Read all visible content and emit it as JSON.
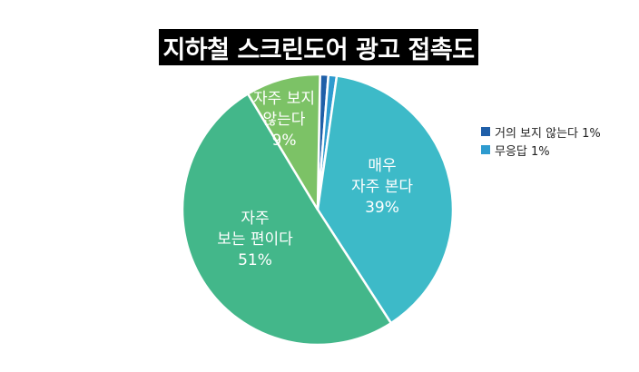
{
  "chart_data": {
    "type": "pie",
    "title": "지하철 스크린도어 광고 접촉도",
    "slices": [
      {
        "label": "거의 보지 않는다",
        "value": 1,
        "color": "#1f5fa8",
        "inner_lines": [],
        "in_legend": true
      },
      {
        "label": "무응답",
        "value": 1,
        "color": "#2e9bcf",
        "inner_lines": [],
        "in_legend": true
      },
      {
        "label": "매우 자주 본다",
        "value": 39,
        "color": "#3dbac8",
        "inner_lines": [
          "매우",
          "자주 본다",
          "39%"
        ],
        "in_legend": false
      },
      {
        "label": "자주 보는 편이다",
        "value": 51,
        "color": "#43b78a",
        "inner_lines": [
          "자주",
          "보는 편이다",
          "51%"
        ],
        "in_legend": false
      },
      {
        "label": "자주 보지 않는다",
        "value": 9,
        "color": "#7cc266",
        "inner_lines": [
          "자주 보지",
          "않는다",
          "9%"
        ],
        "in_legend": false
      }
    ],
    "legend": {
      "placement": "right",
      "items": [
        {
          "text": "거의 보지 않는다 1%",
          "color": "#1f5fa8"
        },
        {
          "text": "무응답 1%",
          "color": "#2e9bcf"
        }
      ]
    }
  }
}
